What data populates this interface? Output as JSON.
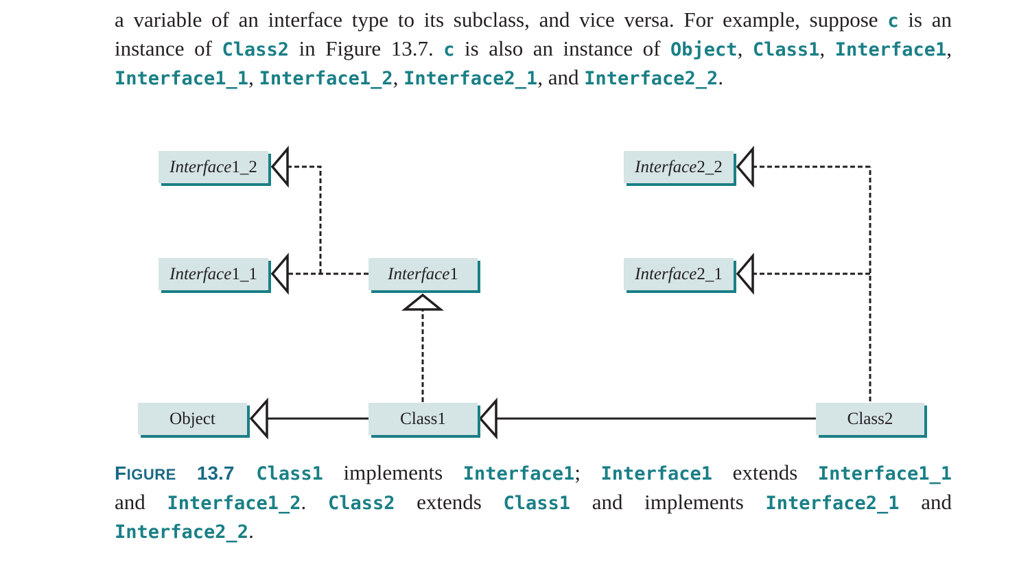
{
  "intro": {
    "line1": [
      {
        "t": "a variable of an interface type to its subclass, and vice versa. For example, suppose ",
        "code": false
      },
      {
        "t": "c",
        "code": true
      },
      {
        "t": " is an",
        "code": false
      }
    ],
    "line2": [
      {
        "t": "instance of ",
        "code": false
      },
      {
        "t": "Class2",
        "code": true
      },
      {
        "t": " in Figure 13.7. ",
        "code": false
      },
      {
        "t": "c",
        "code": true
      },
      {
        "t": " is also an instance of ",
        "code": false
      },
      {
        "t": "Object",
        "code": true
      },
      {
        "t": ", ",
        "code": false
      },
      {
        "t": "Class1",
        "code": true
      },
      {
        "t": ", ",
        "code": false
      },
      {
        "t": "Interface1",
        "code": true
      },
      {
        "t": ",",
        "code": false
      }
    ],
    "line3": [
      {
        "t": "Interface1_1",
        "code": true
      },
      {
        "t": ", ",
        "code": false
      },
      {
        "t": "Interface1_2",
        "code": true
      },
      {
        "t": ", ",
        "code": false
      },
      {
        "t": "Interface2_1",
        "code": true
      },
      {
        "t": ", and ",
        "code": false
      },
      {
        "t": "Interface2_2",
        "code": true
      },
      {
        "t": ".",
        "code": false
      }
    ]
  },
  "diagram": {
    "boxes": {
      "interface1_2": {
        "prefix": "Interface",
        "suffix": "1_2"
      },
      "interface1_1": {
        "prefix": "Interface",
        "suffix": "1_1"
      },
      "interface1": {
        "prefix": "Interface",
        "suffix": "1"
      },
      "interface2_2": {
        "prefix": "Interface",
        "suffix": "2_2"
      },
      "interface2_1": {
        "prefix": "Interface",
        "suffix": "2_1"
      },
      "object": {
        "label": "Object"
      },
      "class1": {
        "label": "Class1"
      },
      "class2": {
        "label": "Class2"
      }
    },
    "colors": {
      "box_fill": "#d5e4e5",
      "box_shadow": "#1a7f86",
      "line": "#231f20"
    }
  },
  "caption": {
    "label_first": "F",
    "label_rest": "IGURE",
    "number": "13.7",
    "line1": [
      {
        "t": "Class1",
        "code": true
      },
      {
        "t": " implements ",
        "code": false
      },
      {
        "t": "Interface1",
        "code": true
      },
      {
        "t": "; ",
        "code": false
      },
      {
        "t": "Interface1",
        "code": true
      },
      {
        "t": " extends ",
        "code": false
      },
      {
        "t": "Interface1_1",
        "code": true
      }
    ],
    "line2": [
      {
        "t": "and ",
        "code": false
      },
      {
        "t": "Interface1_2",
        "code": true
      },
      {
        "t": ". ",
        "code": false
      },
      {
        "t": "Class2",
        "code": true
      },
      {
        "t": " extends ",
        "code": false
      },
      {
        "t": "Class1",
        "code": true
      },
      {
        "t": " and implements ",
        "code": false
      },
      {
        "t": "Interface2_1",
        "code": true
      },
      {
        "t": " and",
        "code": false
      }
    ],
    "line3": [
      {
        "t": "Interface2_2",
        "code": true
      },
      {
        "t": ".",
        "code": false
      }
    ]
  }
}
